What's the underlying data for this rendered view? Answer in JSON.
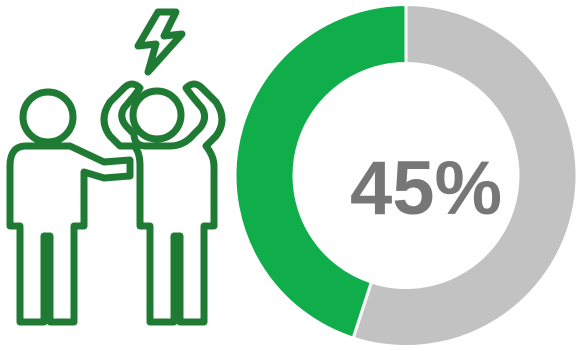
{
  "chart_data": {
    "type": "pie",
    "style": "donut",
    "categories": [
      "highlighted",
      "remainder"
    ],
    "values": [
      45,
      55
    ],
    "center_label": "45%",
    "title": "",
    "legend": "none"
  },
  "colors": {
    "highlight": "#0fae4a",
    "remainder": "#c2c2c2",
    "label": "#777777",
    "illustration": "#1f7a33"
  },
  "illustration": {
    "icon": "stressed-person-with-companion-icon"
  }
}
